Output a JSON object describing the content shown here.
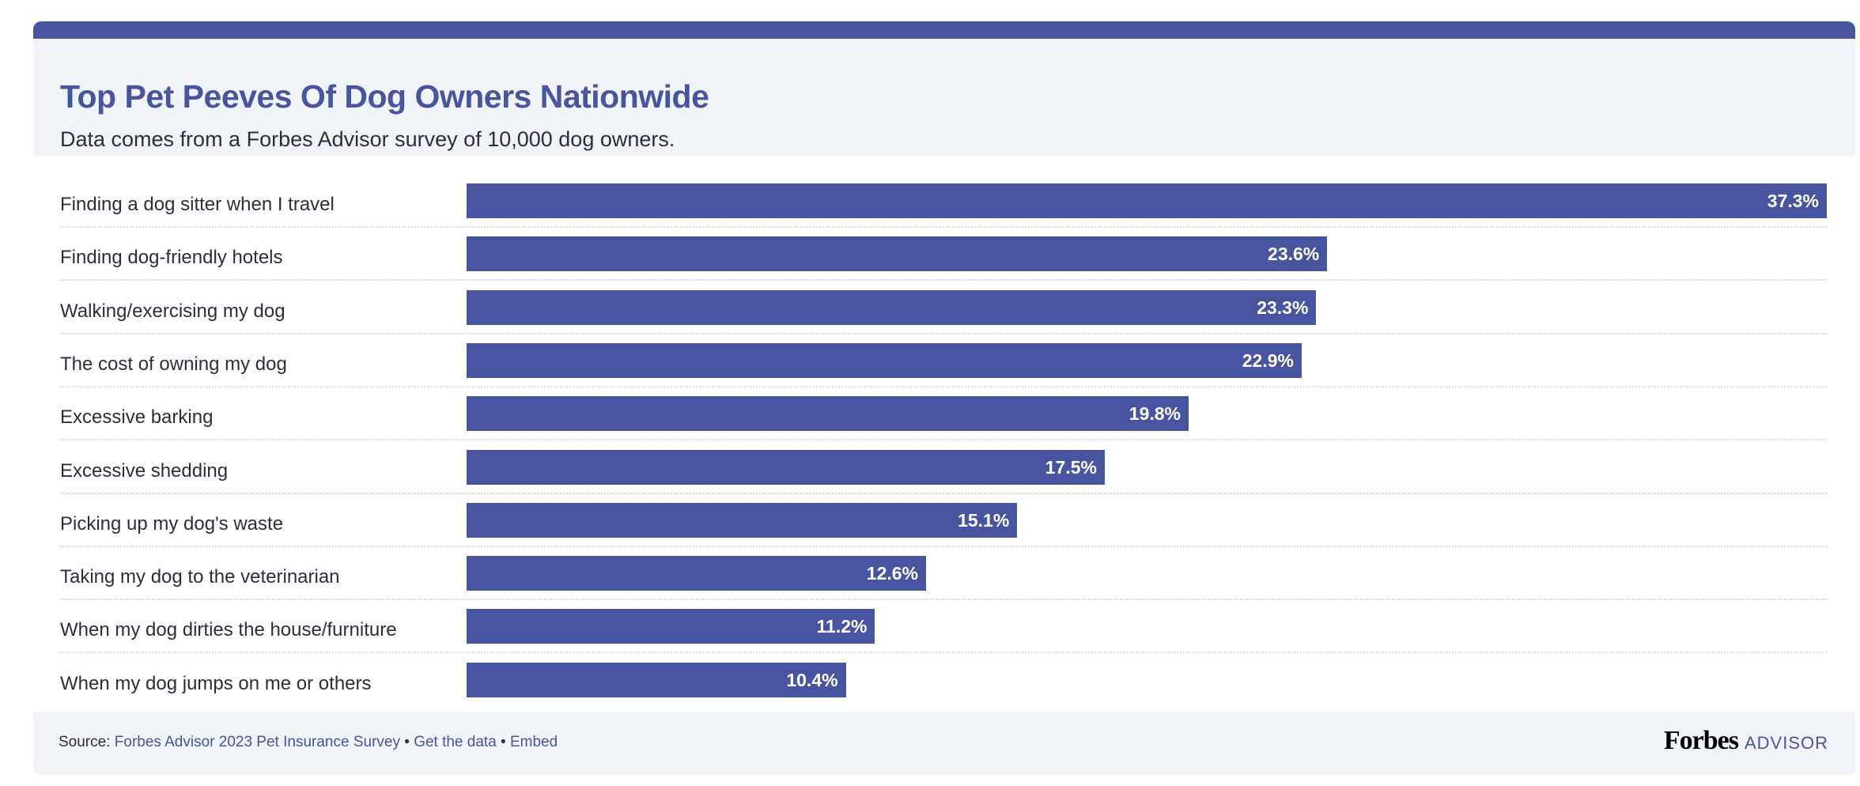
{
  "chart_data": {
    "type": "bar",
    "orientation": "horizontal",
    "title": "Top Pet Peeves Of Dog Owners Nationwide",
    "subtitle": "Data comes from a Forbes Advisor survey of 10,000 dog owners.",
    "categories": [
      "Finding a dog sitter when I travel",
      "Finding dog-friendly hotels",
      "Walking/exercising my dog",
      "The cost of owning my dog",
      "Excessive barking",
      "Excessive shedding",
      "Picking up my dog's waste",
      "Taking my dog to the veterinarian",
      "When my dog dirties the house/furniture",
      "When my dog jumps on me or others"
    ],
    "values": [
      37.3,
      23.6,
      23.3,
      22.9,
      19.8,
      17.5,
      15.1,
      12.6,
      11.2,
      10.4
    ],
    "value_labels": [
      "37.3%",
      "23.6%",
      "23.3%",
      "22.9%",
      "19.8%",
      "17.5%",
      "15.1%",
      "12.6%",
      "11.2%",
      "10.4%"
    ],
    "xlim": [
      0,
      37.3
    ],
    "bar_color": "#4755a0"
  },
  "footer": {
    "source_prefix": "Source: ",
    "source_link": "Forbes Advisor 2023 Pet Insurance Survey",
    "sep1": " • ",
    "get_data": "Get the data",
    "sep2": " • ",
    "embed": "Embed",
    "logo_forbes": "Forbes",
    "logo_advisor": "ADVISOR"
  }
}
